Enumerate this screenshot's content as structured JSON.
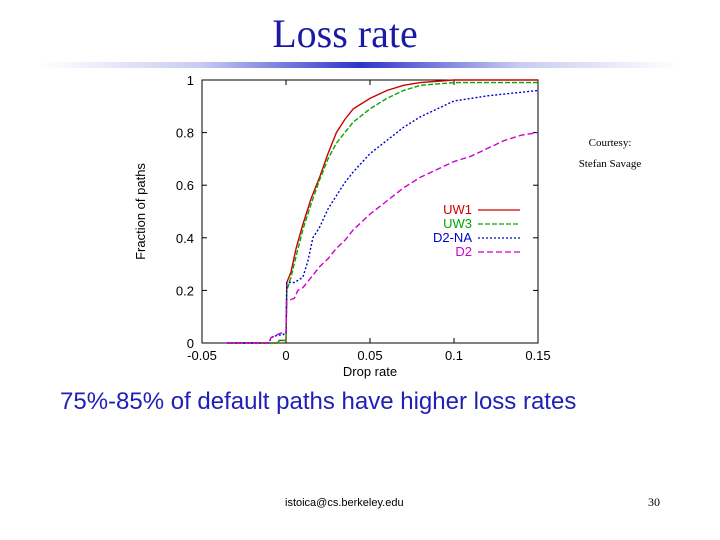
{
  "slide": {
    "title": "Loss rate",
    "courtesy_line1": "Courtesy:",
    "courtesy_line2": "Stefan Savage",
    "caption": "75%-85% of default paths have higher loss rates",
    "footer_email": "istoica@cs.berkeley.edu",
    "page_number": "30"
  },
  "chart_data": {
    "type": "line",
    "title": "",
    "xlabel": "Drop rate",
    "ylabel": "Fraction of paths",
    "xlim": [
      -0.05,
      0.15
    ],
    "ylim": [
      0,
      1
    ],
    "xticks": [
      -0.05,
      0,
      0.05,
      0.1,
      0.15
    ],
    "xtick_labels": [
      "-0.05",
      "0",
      "0.05",
      "0.1",
      "0.15"
    ],
    "yticks": [
      0,
      0.2,
      0.4,
      0.6,
      0.8,
      1
    ],
    "ytick_labels": [
      "0",
      "0.2",
      "0.4",
      "0.6",
      "0.8",
      "1"
    ],
    "legend_position": "right",
    "series": [
      {
        "name": "UW1",
        "color": "#cc0000",
        "dash": "",
        "points": [
          [
            -0.035,
            0
          ],
          [
            -0.005,
            0
          ],
          [
            -0.004,
            0.01
          ],
          [
            0,
            0.01
          ],
          [
            0.0005,
            0.23
          ],
          [
            0.003,
            0.27
          ],
          [
            0.006,
            0.36
          ],
          [
            0.01,
            0.45
          ],
          [
            0.015,
            0.55
          ],
          [
            0.02,
            0.63
          ],
          [
            0.025,
            0.72
          ],
          [
            0.03,
            0.8
          ],
          [
            0.035,
            0.85
          ],
          [
            0.04,
            0.89
          ],
          [
            0.05,
            0.93
          ],
          [
            0.06,
            0.96
          ],
          [
            0.07,
            0.98
          ],
          [
            0.08,
            0.99
          ],
          [
            0.1,
            1.0
          ],
          [
            0.15,
            1.0
          ]
        ]
      },
      {
        "name": "UW3",
        "color": "#00aa00",
        "dash": "5,2",
        "points": [
          [
            -0.035,
            0
          ],
          [
            -0.005,
            0
          ],
          [
            -0.004,
            0.01
          ],
          [
            0,
            0.01
          ],
          [
            0.0005,
            0.2
          ],
          [
            0.003,
            0.25
          ],
          [
            0.006,
            0.33
          ],
          [
            0.01,
            0.43
          ],
          [
            0.015,
            0.53
          ],
          [
            0.02,
            0.62
          ],
          [
            0.025,
            0.7
          ],
          [
            0.03,
            0.76
          ],
          [
            0.035,
            0.8
          ],
          [
            0.04,
            0.84
          ],
          [
            0.05,
            0.89
          ],
          [
            0.06,
            0.93
          ],
          [
            0.07,
            0.96
          ],
          [
            0.08,
            0.98
          ],
          [
            0.1,
            0.99
          ],
          [
            0.15,
            0.99
          ]
        ]
      },
      {
        "name": "D2-NA",
        "color": "#0000cc",
        "dash": "2,2",
        "points": [
          [
            -0.035,
            0
          ],
          [
            -0.01,
            0
          ],
          [
            -0.009,
            0.02
          ],
          [
            -0.005,
            0.03
          ],
          [
            -0.002,
            0.03
          ],
          [
            0,
            0.04
          ],
          [
            0.0005,
            0.23
          ],
          [
            0.005,
            0.23
          ],
          [
            0.01,
            0.25
          ],
          [
            0.013,
            0.31
          ],
          [
            0.016,
            0.4
          ],
          [
            0.02,
            0.44
          ],
          [
            0.025,
            0.51
          ],
          [
            0.03,
            0.56
          ],
          [
            0.035,
            0.61
          ],
          [
            0.04,
            0.65
          ],
          [
            0.05,
            0.72
          ],
          [
            0.06,
            0.77
          ],
          [
            0.07,
            0.82
          ],
          [
            0.08,
            0.86
          ],
          [
            0.09,
            0.89
          ],
          [
            0.1,
            0.92
          ],
          [
            0.12,
            0.94
          ],
          [
            0.15,
            0.96
          ]
        ]
      },
      {
        "name": "D2",
        "color": "#cc00cc",
        "dash": "6,3",
        "points": [
          [
            -0.035,
            0
          ],
          [
            -0.01,
            0
          ],
          [
            -0.009,
            0.02
          ],
          [
            -0.006,
            0.03
          ],
          [
            -0.002,
            0.04
          ],
          [
            0,
            0.04
          ],
          [
            0.0005,
            0.16
          ],
          [
            0.005,
            0.17
          ],
          [
            0.007,
            0.2
          ],
          [
            0.01,
            0.21
          ],
          [
            0.015,
            0.25
          ],
          [
            0.02,
            0.29
          ],
          [
            0.025,
            0.32
          ],
          [
            0.03,
            0.36
          ],
          [
            0.035,
            0.39
          ],
          [
            0.04,
            0.43
          ],
          [
            0.05,
            0.49
          ],
          [
            0.06,
            0.54
          ],
          [
            0.07,
            0.59
          ],
          [
            0.08,
            0.63
          ],
          [
            0.09,
            0.66
          ],
          [
            0.1,
            0.69
          ],
          [
            0.11,
            0.71
          ],
          [
            0.12,
            0.74
          ],
          [
            0.13,
            0.77
          ],
          [
            0.14,
            0.79
          ],
          [
            0.15,
            0.8
          ]
        ]
      }
    ]
  }
}
